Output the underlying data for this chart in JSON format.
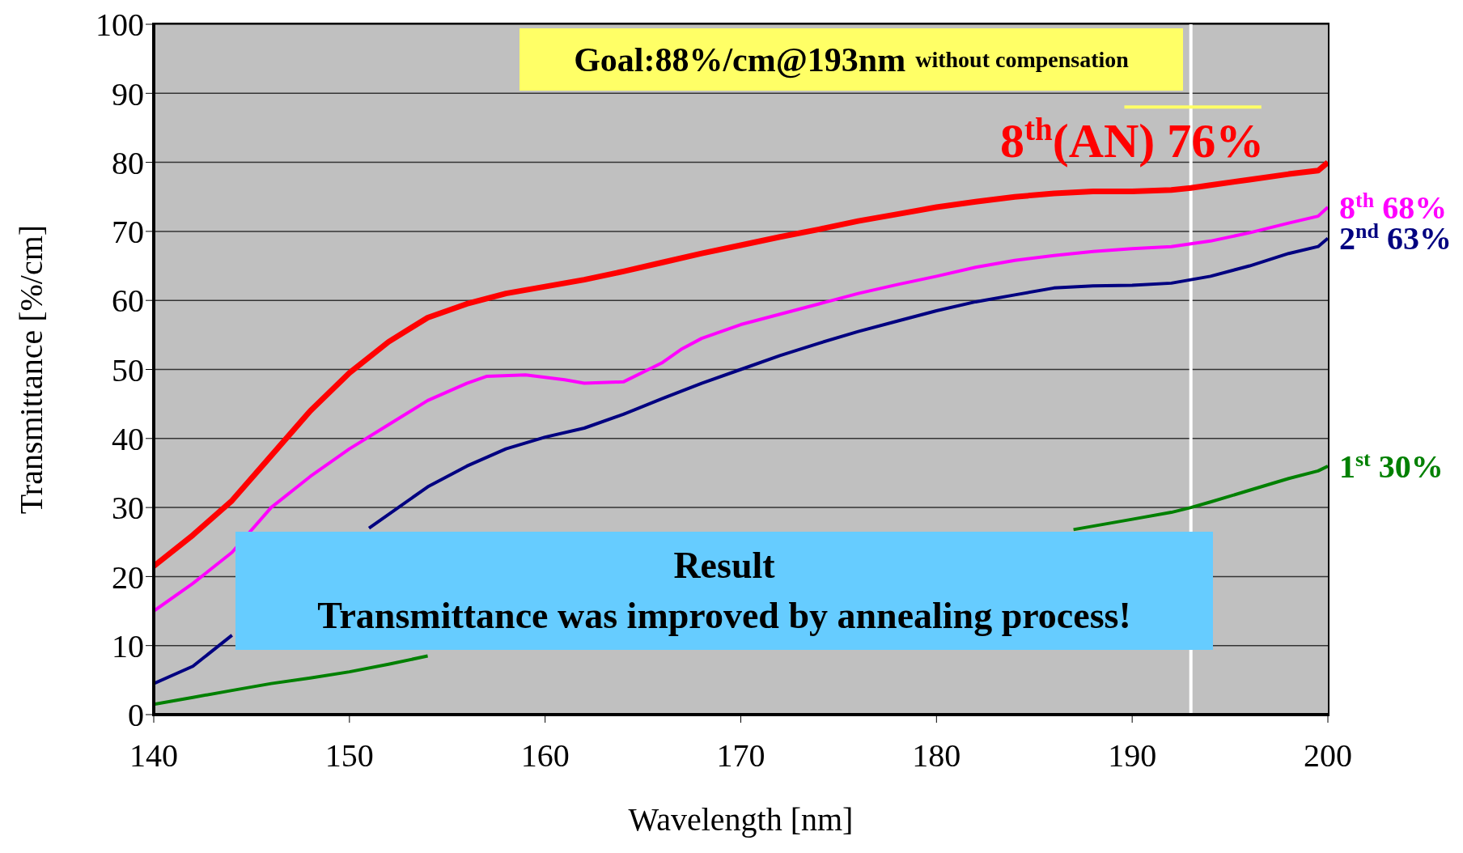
{
  "chart_data": {
    "type": "line",
    "xlabel": "Wavelength [nm]",
    "ylabel": "Transmittance [%/cm]",
    "xlim": [
      140,
      200
    ],
    "xticks": [
      140,
      150,
      160,
      170,
      180,
      190,
      200
    ],
    "ylim": [
      0,
      100
    ],
    "yticks": [
      0,
      10,
      20,
      30,
      40,
      50,
      60,
      70,
      80,
      90,
      100
    ],
    "grid": "y",
    "legend": false,
    "marker": "none",
    "line_style": "solid",
    "series": [
      {
        "name": "8$^{th}$(AN) 76%",
        "color": "#ff0000",
        "x": [
          140,
          142,
          144,
          146,
          148,
          150,
          152,
          154,
          156,
          158,
          160,
          162,
          164,
          166,
          168,
          170,
          172,
          174,
          176,
          178,
          180,
          182,
          184,
          186,
          188,
          190,
          192,
          193,
          194,
          196,
          198,
          199.5,
          200
        ],
        "values": [
          21.5,
          26,
          31,
          37.5,
          44,
          49.5,
          54,
          57.5,
          59.5,
          61,
          62,
          63,
          64.2,
          65.5,
          66.8,
          68,
          69.2,
          70.3,
          71.5,
          72.5,
          73.5,
          74.3,
          75,
          75.5,
          75.8,
          75.8,
          76,
          76.3,
          76.7,
          77.5,
          78.3,
          78.8,
          80
        ]
      },
      {
        "name": "8$^{th}$ 68%",
        "color": "#ff00ff",
        "x": [
          140,
          142,
          144,
          146,
          148,
          150,
          152,
          154,
          156,
          157,
          159,
          161,
          162,
          164,
          166,
          167,
          168,
          170,
          172,
          174,
          176,
          178,
          180,
          182,
          184,
          186,
          188,
          190,
          192,
          193,
          194,
          196,
          198,
          199.5,
          200
        ],
        "values": [
          15,
          19,
          23.5,
          30,
          34.5,
          38.5,
          42,
          45.5,
          48,
          49,
          49.2,
          48.5,
          48,
          48.2,
          51,
          53,
          54.5,
          56.5,
          58,
          59.5,
          61,
          62.3,
          63.5,
          64.8,
          65.8,
          66.5,
          67.1,
          67.5,
          67.8,
          68.2,
          68.6,
          69.8,
          71.2,
          72.2,
          73.5
        ]
      },
      {
        "name": "2$^{nd}$ 63%",
        "color": "#000080",
        "x": [
          140,
          142,
          144,
          146,
          148,
          150,
          151,
          152,
          154,
          156,
          158,
          160,
          162,
          164,
          166,
          168,
          170,
          172,
          174,
          176,
          178,
          180,
          182,
          184,
          186,
          188,
          190,
          192,
          193,
          194,
          196,
          198,
          199.5,
          200
        ],
        "values": [
          4.5,
          7,
          11.5,
          null,
          null,
          null,
          27,
          29,
          33,
          36,
          38.5,
          40.2,
          41.5,
          43.5,
          45.8,
          48,
          50,
          52,
          53.8,
          55.5,
          57,
          58.5,
          59.8,
          60.8,
          61.8,
          62.1,
          62.2,
          62.5,
          63,
          63.5,
          65,
          66.8,
          67.8,
          69
        ]
      },
      {
        "name": "1$^{st}$ 30%",
        "color": "#008000",
        "x": [
          140,
          142,
          144,
          146,
          148,
          150,
          152,
          154,
          170,
          187,
          188,
          190,
          192,
          193,
          194,
          196,
          198,
          199.5,
          200
        ],
        "values": [
          1.5,
          2.5,
          3.5,
          4.5,
          5.3,
          6.2,
          7.3,
          8.5,
          null,
          26.8,
          27.3,
          28.3,
          29.3,
          30,
          30.8,
          32.5,
          34.2,
          35.3,
          36
        ]
      },
      {
        "color": "#ffff66",
        "x": [
          189.6,
          196.6
        ],
        "values": [
          88,
          88
        ]
      }
    ],
    "ref_lines": [
      {
        "axis": "x",
        "value": 193,
        "color": "#ffffff"
      }
    ],
    "annotations": [
      "Goal:88%/cm@193nm",
      "without compensation",
      "Result",
      "Transmittance was improved by annealing process!"
    ]
  }
}
